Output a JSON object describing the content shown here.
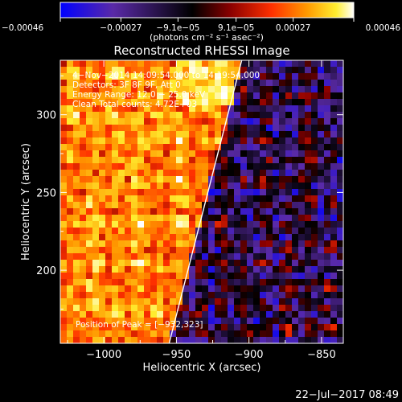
{
  "chart_data": {
    "type": "heatmap",
    "title": "Reconstructed RHESSI Image",
    "xlabel": "Heliocentric X (arcsec)",
    "ylabel": "Heliocentric Y (arcsec)",
    "xlim": [
      -1030,
      -835
    ],
    "ylim": [
      153,
      335
    ],
    "xticks": [
      -1000,
      -950,
      -900,
      -850
    ],
    "xtick_labels": [
      "−1000",
      "−950",
      "−900",
      "−850"
    ],
    "yticks": [
      200,
      250,
      300
    ],
    "ytick_labels": [
      "200",
      "250",
      "300"
    ],
    "colorbar": {
      "label": "(photons cm⁻² s⁻¹ asec⁻²)",
      "range": [
        -0.00046,
        0.00046
      ],
      "ticks": [
        -0.00046,
        -0.00027,
        -9.1e-05,
        9.1e-05,
        0.00027,
        0.00046
      ],
      "tick_labels": [
        "−0.00046",
        "−0.00027",
        "−9.1e−05",
        "9.1e−05",
        "0.00027",
        "0.00046"
      ],
      "colors": [
        "#0000ff",
        "#5a2aa8",
        "#000000",
        "#8a0000",
        "#ff3000",
        "#ff9900",
        "#ffee30",
        "#ffffff"
      ]
    },
    "annotations": [
      "4−Nov−2014 14:09:54.000 to 14:19:54.000",
      "Detectors: 3F 8F 9F, Att 0",
      "Energy Range: 12.0 − 25.0 keV",
      "Clean    Total counts: 4.72E+03"
    ],
    "peak_label": "Position of Peak = [−932,323]",
    "peak": [
      -932,
      323
    ],
    "limb_line": [
      [
        -955,
        153
      ],
      [
        -905,
        335
      ]
    ],
    "grid": false
  },
  "footer": {
    "timestamp": "22−Jul−2017 08:49"
  }
}
